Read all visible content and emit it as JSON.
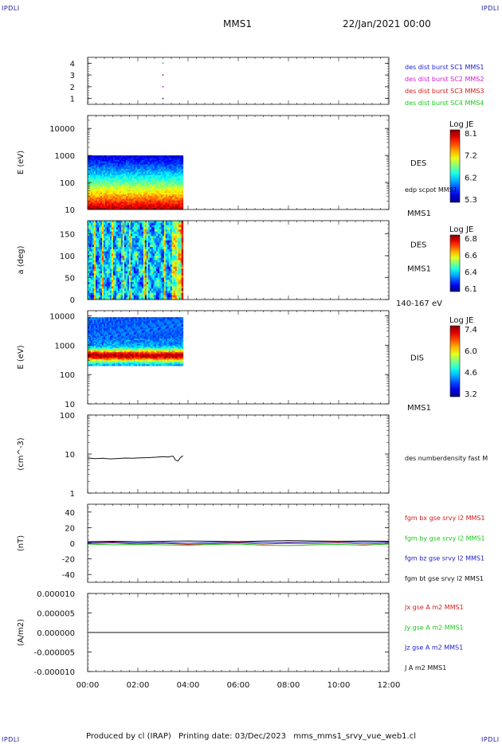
{
  "header": {
    "mission": "MMS1",
    "date": "22/Jan/2021 00:00"
  },
  "corner_logo": "IPDLI",
  "footer": {
    "produced": "Produced by cl (IRAP)",
    "printing": "Printing date: 03/Dec/2023",
    "plot_name": "mms_mms1_srvy_vue_web1.cl"
  },
  "x_axis": {
    "ticks": [
      "00:00",
      "02:00",
      "04:00",
      "06:00",
      "08:00",
      "10:00",
      "12:00"
    ],
    "range_hours": [
      0,
      12
    ]
  },
  "panels": [
    {
      "id": "burst",
      "type": "scatter",
      "ylim": [
        0.5,
        4.5
      ],
      "yticks": [
        "1",
        "2",
        "3",
        "4"
      ],
      "right_labels": [
        {
          "text": "des dist burst SC1 MMS1",
          "color": "#1a1ad0"
        },
        {
          "text": "des dist burst SC2 MMS2",
          "color": "#d21ad2"
        },
        {
          "text": "des dist burst SC3 MMS3",
          "color": "#d21a1a"
        },
        {
          "text": "des dist burst SC4 MMS4",
          "color": "#1ac81a"
        }
      ],
      "points": [
        {
          "x": 3.0,
          "y": 1,
          "color": "#1a1ad0"
        },
        {
          "x": 3.0,
          "y": 2,
          "color": "#d21ad2"
        },
        {
          "x": 3.0,
          "y": 3,
          "color": "#d21a1a"
        },
        {
          "x": 3.0,
          "y": 4,
          "color": "#1ac81a"
        }
      ]
    },
    {
      "id": "des_energy",
      "type": "heatmap",
      "ylabel": "E (eV)",
      "yscale": "log",
      "ylim": [
        10,
        30000
      ],
      "yticks": [
        "10",
        "100",
        "1000",
        "10000"
      ],
      "ytick_values": [
        10,
        100,
        1000,
        10000
      ],
      "data_x": [
        0,
        3.8
      ],
      "data_y": [
        10,
        1000
      ],
      "label_main": "DES",
      "label_sub": "edp scpot MMS1",
      "label_bottom": "MMS1",
      "colorbar": {
        "title": "Log JE",
        "ticks": [
          "8.1",
          "7.2",
          "6.2",
          "5.3"
        ]
      }
    },
    {
      "id": "des_pitch",
      "type": "heatmap",
      "ylabel": "a (deg)",
      "yscale": "linear",
      "ylim": [
        0,
        180
      ],
      "yticks": [
        "0",
        "50",
        "100",
        "150"
      ],
      "ytick_values": [
        0,
        50,
        100,
        150
      ],
      "data_x": [
        0,
        3.8
      ],
      "data_y": [
        0,
        180
      ],
      "label_main": "DES",
      "label_sub": "MMS1",
      "label_bottom": "140-167 eV",
      "colorbar": {
        "title": "Log JE",
        "ticks": [
          "6.8",
          "6.6",
          "6.4",
          "6.1"
        ]
      }
    },
    {
      "id": "dis_energy",
      "type": "heatmap",
      "ylabel": "E (eV)",
      "yscale": "log",
      "ylim": [
        10,
        15000
      ],
      "yticks": [
        "10",
        "100",
        "1000",
        "10000"
      ],
      "ytick_values": [
        10,
        100,
        1000,
        10000
      ],
      "data_x": [
        0,
        3.8
      ],
      "data_y": [
        200,
        9000
      ],
      "label_main": "DIS",
      "label_bottom": "MMS1",
      "colorbar": {
        "title": "Log JE",
        "ticks": [
          "7.4",
          "6.0",
          "4.6",
          "3.2"
        ]
      }
    },
    {
      "id": "density",
      "type": "line",
      "ylabel": "(cm^-3)",
      "yscale": "log",
      "ylim": [
        1,
        100
      ],
      "yticks": [
        "1",
        "10",
        "100"
      ],
      "ytick_values": [
        1,
        10,
        100
      ],
      "right_labels": [
        {
          "text": "des numberdensity fast M",
          "color": "#111111"
        }
      ],
      "series": [
        {
          "name": "des numberdensity fast M",
          "color": "#111111",
          "x": [
            0.0,
            0.3,
            0.6,
            0.9,
            1.2,
            1.5,
            1.8,
            2.1,
            2.4,
            2.7,
            3.0,
            3.2,
            3.4,
            3.5,
            3.6,
            3.7,
            3.8
          ],
          "y": [
            7.9,
            7.6,
            7.8,
            7.5,
            7.7,
            7.9,
            7.8,
            8.0,
            8.1,
            8.3,
            8.6,
            8.4,
            8.9,
            7.0,
            6.6,
            8.2,
            9.0
          ]
        }
      ]
    },
    {
      "id": "magnetic",
      "type": "line",
      "ylabel": "(nT)",
      "yscale": "linear",
      "ylim": [
        -50,
        50
      ],
      "yticks": [
        "-40",
        "-20",
        "0",
        "20",
        "40"
      ],
      "ytick_values": [
        -40,
        -20,
        0,
        20,
        40
      ],
      "right_labels": [
        {
          "text": "fgm bx gse srvy l2 MMS1",
          "color": "#d21a1a"
        },
        {
          "text": "fgm by gse srvy l2 MMS1",
          "color": "#1ac81a"
        },
        {
          "text": "fgm bz gse srvy l2 MMS1",
          "color": "#1a1ad0"
        },
        {
          "text": "fgm bt gse srvy l2 MMS1",
          "color": "#111111"
        }
      ],
      "series": [
        {
          "name": "fgm bx gse srvy l2 MMS1",
          "color": "#d21a1a",
          "x": [
            0,
            1,
            2,
            3,
            4,
            5,
            6,
            7,
            8,
            9,
            10,
            11,
            12
          ],
          "y": [
            -0.5,
            0.5,
            -1,
            0,
            -1.5,
            -0.5,
            0.5,
            -1,
            0,
            -0.5,
            0.5,
            -1,
            0
          ]
        },
        {
          "name": "fgm by gse srvy l2 MMS1",
          "color": "#1ac81a",
          "x": [
            0,
            1,
            2,
            3,
            4,
            5,
            6,
            7,
            8,
            9,
            10,
            11,
            12
          ],
          "y": [
            -1,
            -2,
            -1.5,
            -2,
            -2.5,
            -1.5,
            -1,
            -2.5,
            -3,
            -2,
            -1.5,
            -2.5,
            -1
          ]
        },
        {
          "name": "fgm bz gse srvy l2 MMS1",
          "color": "#1a1ad0",
          "x": [
            0,
            1,
            2,
            3,
            4,
            5,
            6,
            7,
            8,
            9,
            10,
            11,
            12
          ],
          "y": [
            1,
            1.5,
            0.5,
            1,
            0,
            1,
            1.5,
            1,
            1,
            1.5,
            2,
            1,
            1.5
          ]
        },
        {
          "name": "fgm bt gse srvy l2 MMS1",
          "color": "#111111",
          "x": [
            0,
            1,
            2,
            3,
            4,
            5,
            6,
            7,
            8,
            9,
            10,
            11,
            12
          ],
          "y": [
            2,
            2.5,
            2,
            2.5,
            3,
            2.5,
            2,
            3,
            3.5,
            3,
            2.5,
            3,
            2.5
          ]
        }
      ]
    },
    {
      "id": "current",
      "type": "line",
      "ylabel": "(A/m2)",
      "yscale": "linear",
      "ylim": [
        -1e-05,
        1e-05
      ],
      "yticks": [
        "-0.000010",
        "-0.000005",
        "0.000000",
        "0.000005",
        "0.000010"
      ],
      "ytick_values": [
        -1e-05,
        -5e-06,
        0,
        5e-06,
        1e-05
      ],
      "right_labels": [
        {
          "text": "Jx gse A m2 MMS1",
          "color": "#d21a1a"
        },
        {
          "text": "Jy gse A m2 MMS1",
          "color": "#1ac81a"
        },
        {
          "text": "Jz gse A m2 MMS1",
          "color": "#1a1ad0"
        },
        {
          "text": "J A m2 MMS1",
          "color": "#111111"
        }
      ],
      "series": [
        {
          "name": "J A m2 MMS1",
          "color": "#111111",
          "x": [
            0,
            12
          ],
          "y": [
            0,
            0
          ]
        }
      ]
    }
  ]
}
